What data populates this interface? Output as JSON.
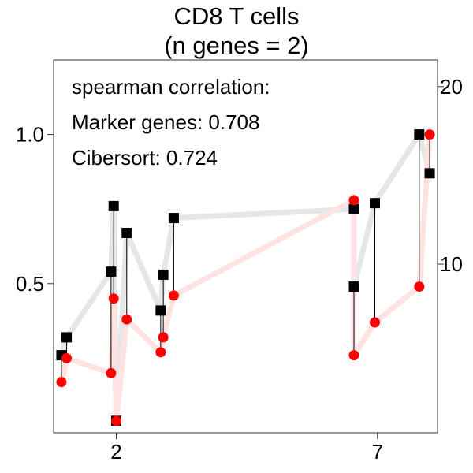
{
  "chart_data": {
    "type": "scatter",
    "title": "CD8 T cells",
    "subtitle": "(n genes = 2)",
    "x_ticks": [
      2,
      7
    ],
    "left_axis": {
      "ylim": [
        0.0,
        1.25
      ],
      "ticks": [
        0.5,
        1.0
      ],
      "tick_labels": [
        "0.5",
        "1.0"
      ]
    },
    "right_axis": {
      "ylim": [
        0.5,
        21.5
      ],
      "ticks": [
        10,
        20
      ],
      "tick_labels": [
        "10",
        "20"
      ]
    },
    "annotations": [
      "spearman correlation:",
      "Marker genes: 0.708",
      "Cibersort: 0.724"
    ],
    "grid": false,
    "series": [
      {
        "color": "#000000",
        "marker": "square",
        "axis": "left",
        "x": [
          0.95,
          1.05,
          1.9,
          1.95,
          2.0,
          2.2,
          2.85,
          2.9,
          3.1,
          6.55,
          6.55,
          6.95,
          7.8,
          8.0
        ],
        "values": [
          0.26,
          0.32,
          0.54,
          0.76,
          0.04,
          0.67,
          0.41,
          0.53,
          0.72,
          0.75,
          0.49,
          0.77,
          1.0,
          0.87
        ]
      },
      {
        "color": "#ff0000",
        "marker": "circle",
        "axis": "left",
        "x": [
          0.95,
          1.05,
          1.9,
          1.95,
          2.0,
          2.2,
          2.85,
          2.9,
          3.1,
          6.55,
          6.55,
          6.95,
          7.8,
          8.0
        ],
        "values": [
          0.17,
          0.25,
          0.2,
          0.45,
          0.04,
          0.38,
          0.27,
          0.32,
          0.46,
          0.78,
          0.26,
          0.37,
          0.49,
          1.0
        ]
      }
    ],
    "colors": {
      "black_series": "#000000",
      "red_series": "#ff0000",
      "black_line": "#e6e6e6",
      "red_line": "#ffe3e3",
      "frame": "#333333"
    }
  }
}
